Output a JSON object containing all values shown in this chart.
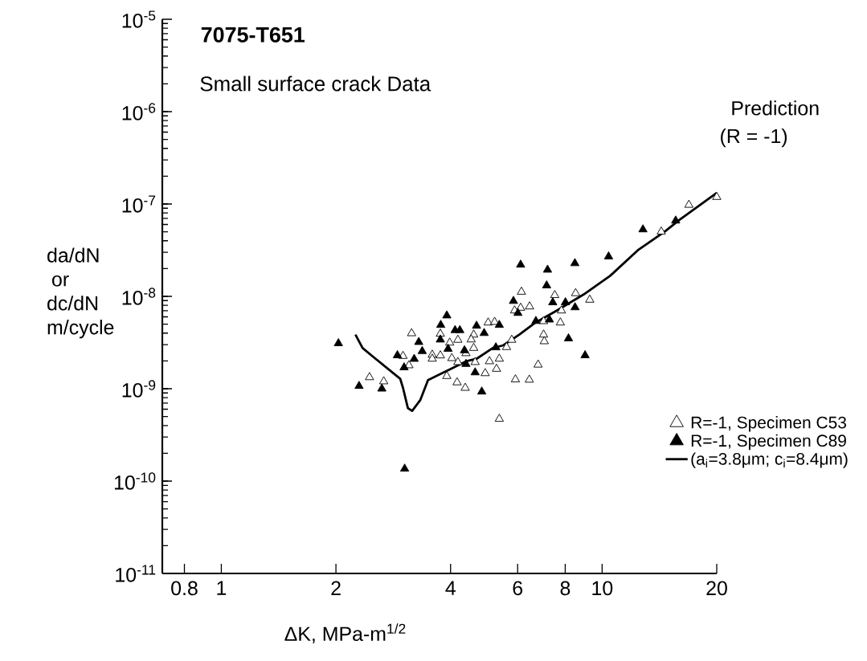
{
  "chart_data": {
    "type": "scatter",
    "title": "7075-T651",
    "subtitle": "Small surface crack Data",
    "xlabel": "ΔK, MPa-m$^{1/2}$",
    "ylabel": "da/dN or dc/dN m/cycle",
    "annotations": [
      "Prediction",
      "(R = -1)"
    ],
    "log": "xy",
    "legend": "bottom right",
    "xlim": [
      0.7,
      20
    ],
    "ylim": [
      1e-11,
      1e-05
    ],
    "xticks": [
      0.8,
      1,
      2,
      4,
      6,
      8,
      10,
      20
    ],
    "yticks": [
      {
        "value": 1e-11,
        "label": "10$^{-11}$"
      },
      {
        "value": 1e-10,
        "label": "10$^{-10}$"
      },
      {
        "value": 1e-09,
        "label": "10$^{-9}$"
      },
      {
        "value": 1e-08,
        "label": "10$^{-8}$"
      },
      {
        "value": 1e-07,
        "label": "10$^{-7}$"
      },
      {
        "value": 1e-06,
        "label": "10$^{-6}$"
      },
      {
        "value": 1e-05,
        "label": "10$^{-5}$"
      }
    ],
    "series": [
      {
        "name": "R=-1, Specimen C53",
        "type": "scatter",
        "marker": "triangle",
        "color": "#ffffff",
        "x": [
          3.16,
          3.0,
          3.11,
          2.45,
          2.67,
          3.58,
          3.58,
          3.76,
          3.76,
          3.98,
          4.18,
          4.03,
          4.18,
          3.91,
          4.16,
          4.37,
          4.6,
          4.6,
          4.53,
          4.39,
          4.64,
          4.93,
          5.06,
          5.28,
          5.37,
          5.02,
          5.22,
          5.79,
          5.61,
          5.92,
          6.44,
          6.79,
          5.37,
          6.14,
          6.45,
          6.11,
          5.89,
          7.02,
          7.05,
          7.51,
          8.52,
          9.28,
          7.77,
          7.82,
          14.3,
          16.9,
          20,
          7.02
        ],
        "values": [
          3.98e-09,
          2.26e-09,
          1.79e-09,
          1.33e-09,
          1.2e-09,
          2.33e-09,
          2.11e-09,
          2.29e-09,
          3.93e-09,
          3.15e-09,
          3.38e-09,
          2.14e-09,
          1.94e-09,
          1.37e-09,
          1.17e-09,
          1.02e-09,
          3.85e-09,
          2.76e-09,
          3.41e-09,
          2.42e-09,
          1.94e-09,
          1.47e-09,
          1.98e-09,
          1.64e-09,
          2.11e-09,
          5.2e-09,
          5.28e-09,
          3.38e-09,
          2.82e-09,
          1.26e-09,
          1.25e-09,
          1.82e-09,
          4.71e-10,
          1.12e-08,
          7.76e-09,
          7.51e-09,
          7.02e-09,
          3.85e-09,
          3.26e-09,
          1.03e-08,
          1.08e-08,
          9.18e-09,
          5.2e-09,
          7.02e-09,
          5.02e-08,
          9.78e-08,
          1.19e-07,
          5.38e-09
        ]
      },
      {
        "name": "R=-1, Specimen C89",
        "type": "scatter",
        "marker": "triangle",
        "color": "#000000",
        "x": [
          2.03,
          2.3,
          2.64,
          3.03,
          2.9,
          3.02,
          3.21,
          3.3,
          3.37,
          3.91,
          3.77,
          3.76,
          3.94,
          4.11,
          4.23,
          4.35,
          4.68,
          4.9,
          4.39,
          4.64,
          4.83,
          5.37,
          6.11,
          5.85,
          6.01,
          5.26,
          7.19,
          7.15,
          8.48,
          10.4,
          12.8,
          15.6,
          7.42,
          8.01,
          8.49,
          7.27,
          8.16,
          9.02,
          6.7
        ],
        "values": [
          3.1e-09,
          1.07e-09,
          1e-09,
          1.36e-10,
          2.3e-09,
          1.7e-09,
          2.1e-09,
          3.2e-09,
          2.55e-09,
          6.2e-09,
          4.9e-09,
          3.4e-09,
          2.7e-09,
          4.3e-09,
          4.3e-09,
          2.6e-09,
          4.8e-09,
          4e-09,
          1.85e-09,
          1.5e-09,
          9.3e-10,
          4.9e-09,
          2.2e-08,
          8.9e-09,
          6.6e-09,
          2.8e-09,
          1.94e-08,
          1.31e-08,
          2.28e-08,
          2.7e-08,
          5.3e-08,
          6.6e-08,
          8.6e-09,
          8.6e-09,
          7.6e-09,
          5.6e-09,
          3.5e-09,
          2.3e-09,
          5.4e-09
        ]
      },
      {
        "name": "(a$_{i}$=3.8μm; c$_{i}$=8.4μm)",
        "type": "line",
        "marker": "none",
        "line_style": "solid",
        "color": "#000000",
        "x": [
          2.25,
          2.35,
          2.49,
          2.95,
          3.0,
          3.09,
          3.17,
          3.33,
          3.49,
          3.73,
          3.98,
          4.39,
          4.68,
          5.16,
          5.5,
          6.06,
          6.68,
          7.6,
          8.95,
          10.5,
          12.4,
          14.6,
          16.0,
          20
        ],
        "values": [
          3.85e-09,
          2.76e-09,
          2.26e-09,
          1.28e-09,
          1.02e-09,
          6.17e-10,
          5.75e-10,
          7.53e-10,
          1.24e-09,
          1.42e-09,
          1.62e-09,
          1.98e-09,
          2.11e-09,
          2.76e-09,
          2.95e-09,
          3.85e-09,
          5.2e-09,
          7.02e-09,
          1.05e-08,
          1.67e-08,
          3.15e-08,
          5.02e-08,
          6.78e-08,
          1.32e-07
        ]
      }
    ]
  }
}
